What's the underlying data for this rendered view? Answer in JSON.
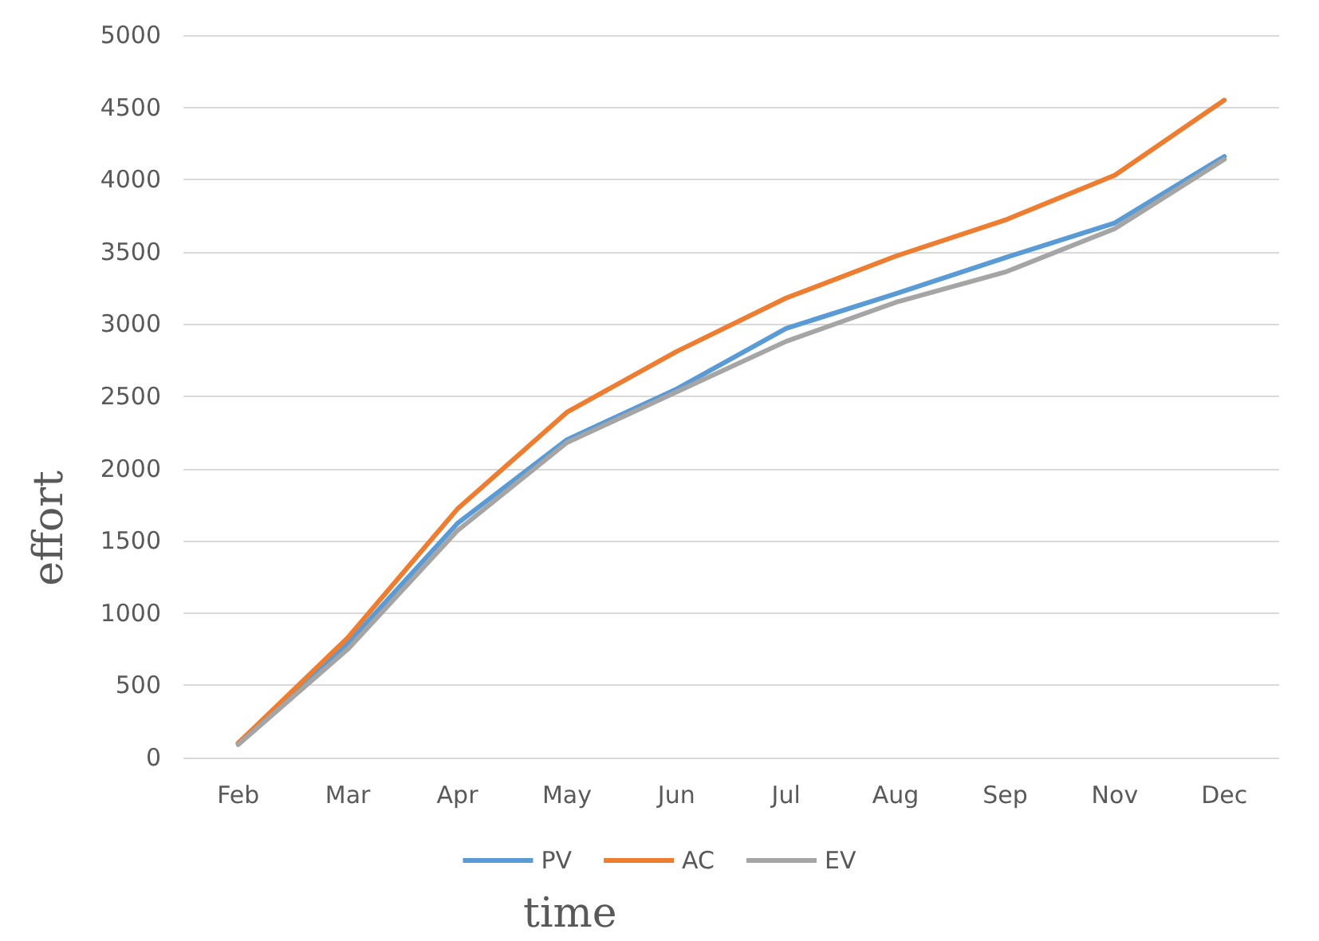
{
  "chart_data": {
    "type": "line",
    "xlabel": "time",
    "ylabel": "effort",
    "categories": [
      "Feb",
      "Mar",
      "Apr",
      "May",
      "Jun",
      "Jul",
      "Aug",
      "Sep",
      "Nov",
      "Dec"
    ],
    "series": [
      {
        "name": "PV",
        "color": "#5b9bd5",
        "values": [
          100,
          790,
          1620,
          2200,
          2550,
          2970,
          3210,
          3460,
          3700,
          4160
        ]
      },
      {
        "name": "AC",
        "color": "#ed7d31",
        "values": [
          100,
          830,
          1720,
          2390,
          2810,
          3180,
          3470,
          3720,
          4030,
          4550
        ]
      },
      {
        "name": "EV",
        "color": "#a5a5a5",
        "values": [
          90,
          750,
          1570,
          2180,
          2530,
          2880,
          3150,
          3360,
          3660,
          4140
        ]
      }
    ],
    "ylim": [
      0,
      5000
    ],
    "yticks": [
      0,
      500,
      1000,
      1500,
      2000,
      2500,
      3000,
      3500,
      4000,
      4500,
      5000
    ],
    "grid": "y",
    "legend": "bottom",
    "marker": "none",
    "line_style": "solid"
  }
}
